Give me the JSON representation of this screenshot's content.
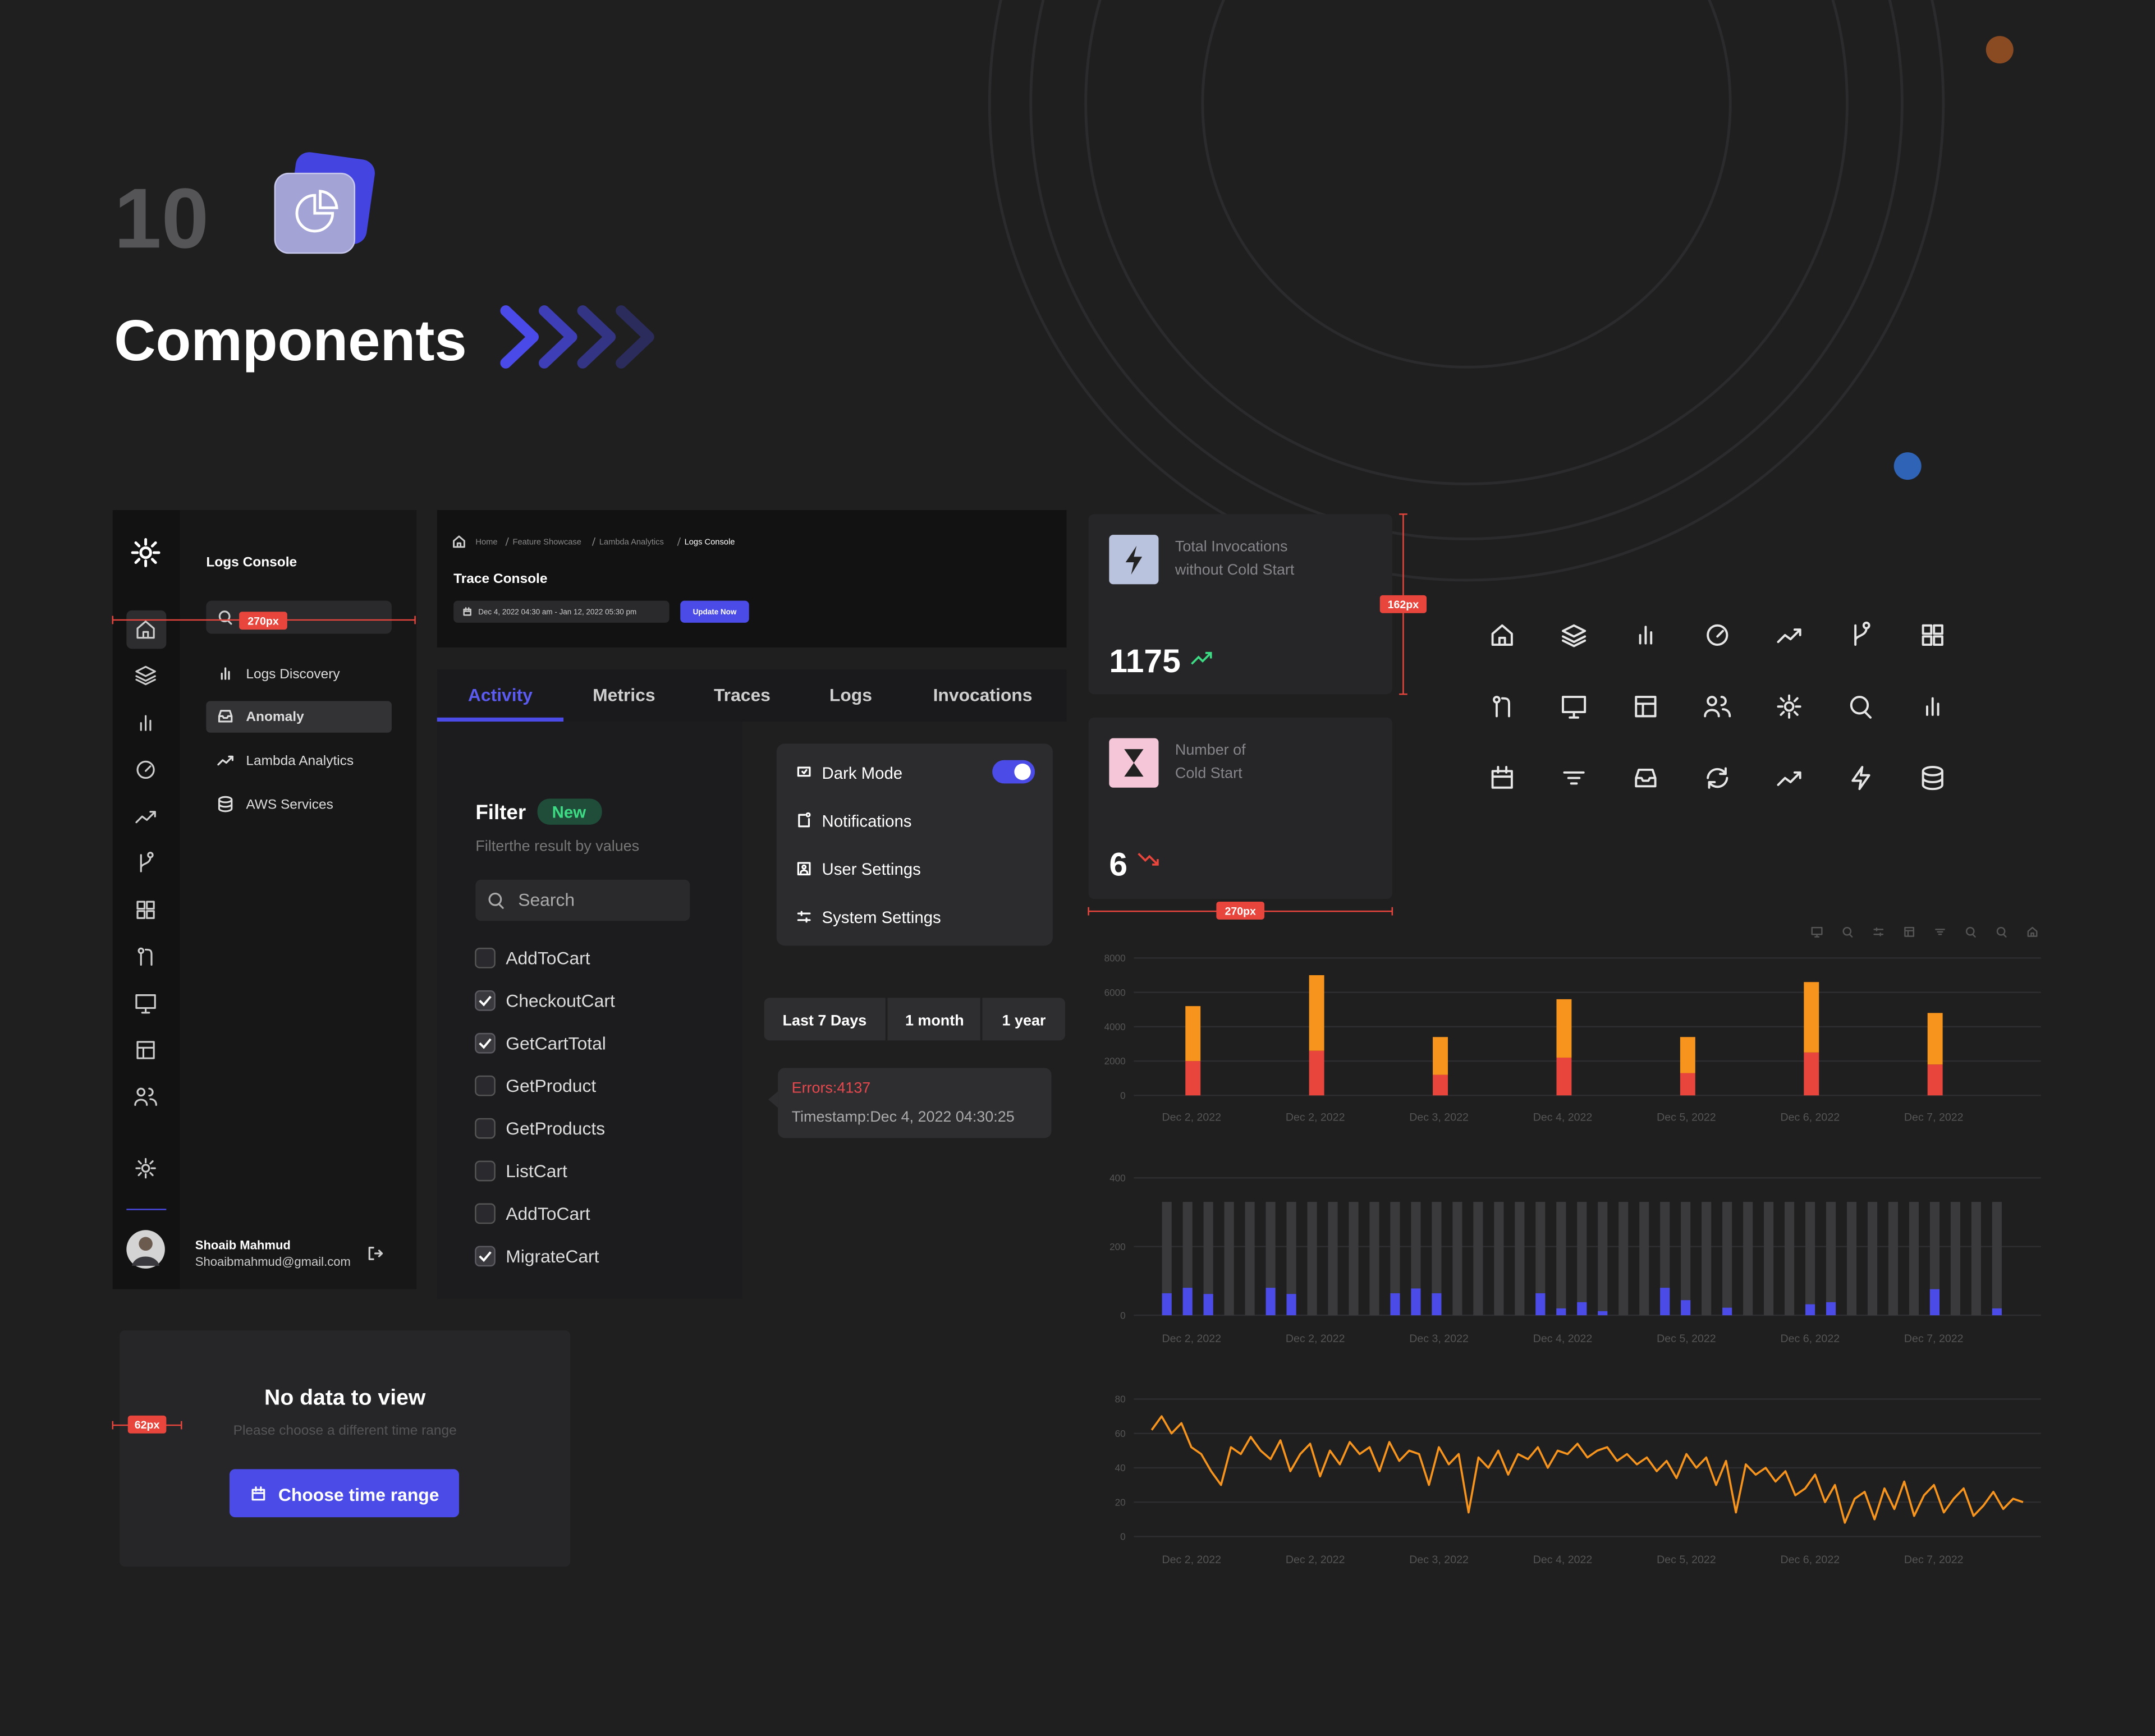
{
  "header": {
    "number": "10",
    "title": "Components"
  },
  "sidebar": {
    "section_title": "Logs Console",
    "measure": "270px",
    "nav": [
      "Logs Discovery",
      "Anomaly",
      "Lambda Analytics",
      "AWS Services"
    ],
    "user_name": "Shoaib Mahmud",
    "user_email": "Shoaibmahmud@gmail.com"
  },
  "trace_header": {
    "breadcrumb": [
      "Home",
      "Feature Showcase",
      "Lambda Analytics",
      "Logs Console"
    ],
    "title": "Trace Console",
    "date_range": "Dec 4, 2022  04:30 am - Jan 12, 2022 05:30 pm",
    "button": "Update Now"
  },
  "tabs": [
    "Activity",
    "Metrics",
    "Traces",
    "Logs",
    "Invocations"
  ],
  "filter": {
    "title": "Filter",
    "badge": "New",
    "subtitle": "Filterthe result by values",
    "search": "Search",
    "options": [
      {
        "label": "AddToCart",
        "checked": false
      },
      {
        "label": "CheckoutCart",
        "checked": true
      },
      {
        "label": "GetCartTotal",
        "checked": true
      },
      {
        "label": "GetProduct",
        "checked": false
      },
      {
        "label": "GetProducts",
        "checked": false
      },
      {
        "label": "ListCart",
        "checked": false
      },
      {
        "label": "AddToCart",
        "checked": false
      },
      {
        "label": "MigrateCart",
        "checked": true
      }
    ]
  },
  "settings_menu": {
    "items": [
      "Dark Mode",
      "Notifications",
      "User Settings",
      "System Settings"
    ],
    "dark_mode": true
  },
  "range_buttons": [
    "Last 7 Days",
    "1 month",
    "1 year"
  ],
  "tooltip": {
    "errors": "Errors:4137",
    "timestamp": "Timestamp:Dec 4, 2022  04:30:25"
  },
  "stat_cards": [
    {
      "label_lines": [
        "Total Invocations",
        "without Cold Start"
      ],
      "value": 1175,
      "trend": "up",
      "measure": "162px"
    },
    {
      "label_lines": [
        "Number of",
        "Cold Start"
      ],
      "value": 6,
      "trend": "down",
      "measure": "270px"
    }
  ],
  "empty_state": {
    "title": "No data to view",
    "subtitle": "Please choose a different time range",
    "button": "Choose time range",
    "measure": "62px"
  },
  "chart_data": [
    {
      "type": "bar",
      "stacked": true,
      "categories": [
        "Dec 2, 2022",
        "Dec 2, 2022",
        "Dec 3, 2022",
        "Dec 4, 2022",
        "Dec 5, 2022",
        "Dec 6, 2022",
        "Dec 7, 2022"
      ],
      "series": [
        {
          "color": "#e8453c",
          "values": [
            2000,
            2600,
            1200,
            2200,
            1300,
            2500,
            1800
          ]
        },
        {
          "color": "#f7941d",
          "values": [
            3200,
            4400,
            2200,
            3400,
            2100,
            4100,
            3000
          ]
        }
      ],
      "ylim": [
        0,
        8000
      ],
      "yticks": [
        0,
        2000,
        4000,
        6000,
        8000
      ],
      "grid": true
    },
    {
      "type": "bar",
      "x_labels": [
        "Dec 2, 2022",
        "Dec 2, 2022",
        "Dec 3, 2022",
        "Dec 4, 2022",
        "Dec 5, 2022",
        "Dec 6, 2022",
        "Dec 7, 2022"
      ],
      "values": [
        64,
        80,
        62,
        0,
        0,
        80,
        62,
        0,
        0,
        0,
        0,
        64,
        78,
        64,
        0,
        0,
        0,
        0,
        64,
        20,
        38,
        12,
        0,
        0,
        80,
        44,
        0,
        22,
        0,
        0,
        0,
        32,
        38,
        0,
        0,
        0,
        0,
        76,
        0,
        0,
        20
      ],
      "color": "#4b4be8",
      "track_value": 330,
      "track_color": "#3a3a3c",
      "ylim": [
        0,
        400
      ],
      "yticks": [
        0,
        200,
        400
      ],
      "grid": true
    },
    {
      "type": "line",
      "x_labels": [
        "Dec 2, 2022",
        "Dec 2, 2022",
        "Dec 3, 2022",
        "Dec 4, 2022",
        "Dec 5, 2022",
        "Dec 6, 2022",
        "Dec 7, 2022"
      ],
      "values": [
        62,
        70,
        60,
        66,
        52,
        48,
        38,
        30,
        52,
        48,
        58,
        50,
        45,
        56,
        38,
        48,
        54,
        35,
        50,
        42,
        55,
        48,
        52,
        38,
        55,
        44,
        50,
        48,
        30,
        52,
        42,
        48,
        14,
        46,
        40,
        50,
        36,
        48,
        45,
        52,
        40,
        50,
        48,
        54,
        46,
        50,
        52,
        44,
        48,
        42,
        46,
        38,
        44,
        34,
        48,
        40,
        46,
        30,
        44,
        14,
        42,
        36,
        40,
        32,
        38,
        24,
        28,
        36,
        20,
        30,
        8,
        22,
        26,
        10,
        28,
        16,
        32,
        12,
        24,
        30,
        14,
        22,
        28,
        12,
        18,
        26,
        16,
        22,
        20
      ],
      "color": "#f7941d",
      "ylim": [
        0,
        80
      ],
      "yticks": [
        0,
        20,
        40,
        60,
        80
      ],
      "grid": true
    }
  ]
}
